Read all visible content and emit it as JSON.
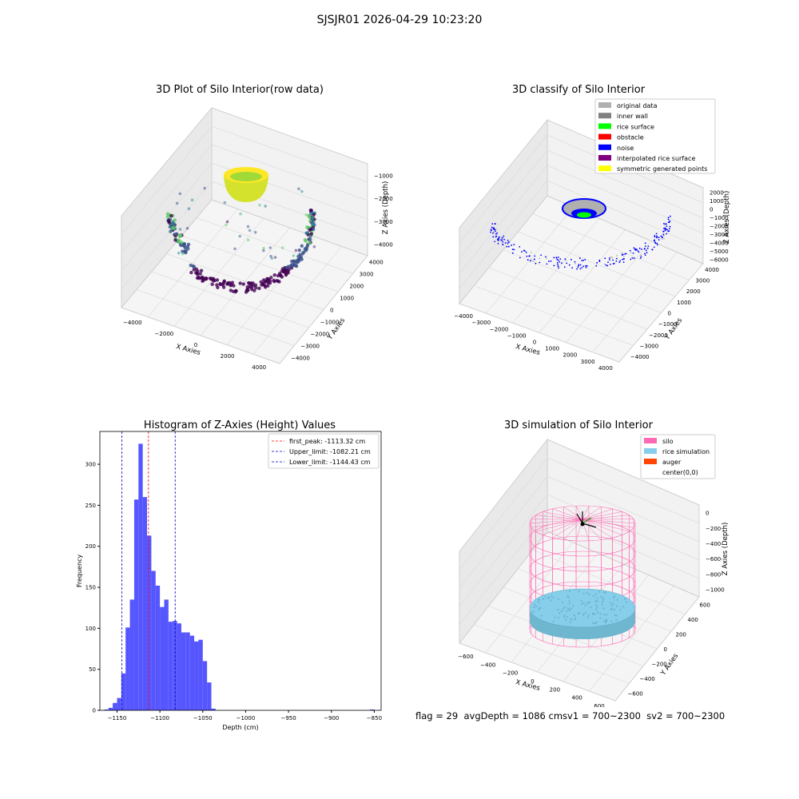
{
  "figure": {
    "title": "SJSJR01 2026-04-29 10:23:20",
    "footer": "flag = 29  avgDepth = 1086 cmsv1 = 700~2300  sv2 = 700~2300"
  },
  "colors": {
    "hist_bar": "#4d4dff",
    "peak_line": "#ff0000",
    "limit_line": "#0000cc",
    "silo": "#ff69b4",
    "rice": "#87ceeb",
    "auger": "#ff4500",
    "original": "#b0b0b0",
    "inner_wall": "#808080",
    "rice_surface": "#00ff00",
    "obstacle": "#ff0000",
    "noise": "#0000ff",
    "interpolated": "#800080",
    "symmetric": "#ffff00"
  },
  "chart_data": [
    {
      "type": "scatter",
      "title": "3D Plot of Silo Interior(row data)",
      "xlabel": "X Axies",
      "ylabel": "Y Axies",
      "zlabel": "Z Axies (Depth)",
      "x_ticks": [
        "−4000",
        "−2000",
        "0",
        "2000",
        "4000"
      ],
      "y_ticks": [
        "4000",
        "3000",
        "2000",
        "1000",
        "0",
        "−1000",
        "−2000",
        "−3000",
        "−4000"
      ],
      "z_ticks": [
        "−1000",
        "−2000",
        "−3000",
        "−4000"
      ],
      "description_points": "points along silo wall in teal/green/purple colour map; yellow bowl at top"
    },
    {
      "type": "scatter",
      "title": "3D classify of Silo Interior",
      "xlabel": "X Axies",
      "ylabel": "Y Axies",
      "zlabel": "Z Axies (Depth)",
      "x_ticks": [
        "−4000",
        "−3000",
        "−2000",
        "−1000",
        "0",
        "1000",
        "2000",
        "3000",
        "4000"
      ],
      "y_ticks": [
        "4000",
        "3000",
        "2000",
        "1000",
        "0",
        "−1000",
        "−2000",
        "−3000",
        "−4000"
      ],
      "z_ticks": [
        "2000",
        "1000",
        "0",
        "−1000",
        "−2000",
        "−3000",
        "−4000",
        "−5000",
        "−6000"
      ],
      "legend": [
        "original data",
        "inner wall",
        "rice surface",
        "obstacle",
        "noise",
        "interpolated rice surface",
        "symmetric generated points"
      ]
    },
    {
      "type": "bar",
      "title": "Histogram of Z-Axies (Height) Values",
      "xlabel": "Depth (cm)",
      "ylabel": "Frequency",
      "xlim": [
        -1170,
        -842
      ],
      "ylim": [
        0,
        340
      ],
      "x_ticks": [
        -1150,
        -1100,
        -1050,
        -1000,
        -950,
        -900,
        -850
      ],
      "x_tick_labels": [
        "−1150",
        "−1100",
        "−1050",
        "−1000",
        "−950",
        "−900",
        "−850"
      ],
      "y_ticks": [
        0,
        50,
        100,
        150,
        200,
        250,
        300
      ],
      "bin_start": -1165,
      "bin_width": 5,
      "values": [
        1,
        3,
        9,
        15,
        45,
        101,
        135,
        257,
        325,
        260,
        213,
        170,
        152,
        126,
        135,
        108,
        109,
        106,
        95,
        95,
        91,
        84,
        86,
        60,
        34,
        2
      ],
      "outlier_bins": [
        {
          "x": -855,
          "value": 1
        }
      ],
      "vlines": [
        {
          "label": "first_peak: -1113.32 cm",
          "x": -1113.32,
          "color": "red"
        },
        {
          "label": "Upper_limit: -1082.21 cm",
          "x": -1082.21,
          "color": "blue"
        },
        {
          "label": "Lower_limit: -1144.43 cm",
          "x": -1144.43,
          "color": "blue"
        }
      ],
      "legend_placement": "top-right"
    },
    {
      "type": "scatter",
      "title": "3D simulation of Silo Interior",
      "xlabel": "X Axies",
      "ylabel": "Y Axies",
      "zlabel": "Z Axies (Depth)",
      "x_ticks": [
        "−600",
        "−400",
        "−200",
        "0",
        "200",
        "400",
        "600"
      ],
      "y_ticks": [
        "600",
        "400",
        "200",
        "0",
        "−200",
        "−400",
        "−600"
      ],
      "z_ticks": [
        "0",
        "−200",
        "−400",
        "−600",
        "−800",
        "−1000"
      ],
      "legend": [
        "silo",
        "rice simulation",
        "auger",
        "center(0,0)"
      ]
    }
  ]
}
